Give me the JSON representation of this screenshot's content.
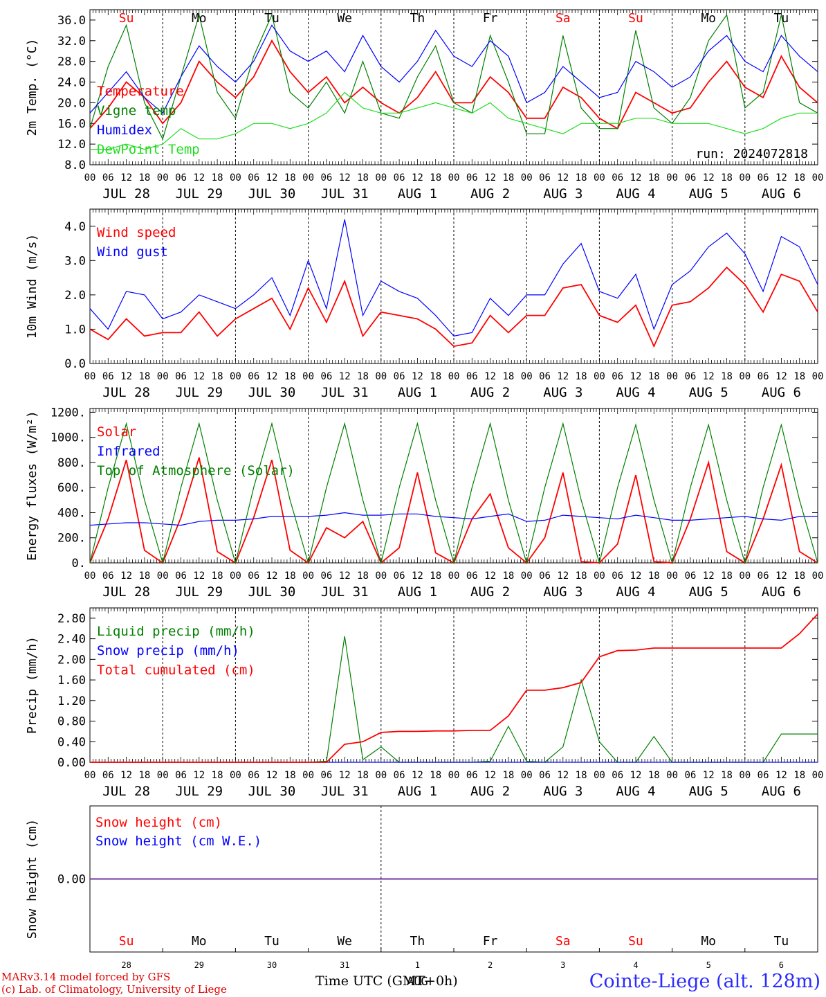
{
  "footer": {
    "model_line": "MARv3.14 model forced by GFS",
    "copyright_line": "(c) Lab. of Climatology, University of Liege",
    "time_label": "Time UTC (GMT+0h)",
    "station": "Cointe-Liege (alt. 128m)",
    "month_tag": "AUG"
  },
  "colors": {
    "red": "#ff0000",
    "darkgreen": "#008000",
    "blue": "#0000ff",
    "lightgreen": "#22dd22",
    "purple": "#7030a0"
  },
  "days": [
    {
      "abbr": "Su",
      "date": "JUL 28",
      "num": "28",
      "weekend": true
    },
    {
      "abbr": "Mo",
      "date": "JUL 29",
      "num": "29",
      "weekend": false
    },
    {
      "abbr": "Tu",
      "date": "JUL 30",
      "num": "30",
      "weekend": false
    },
    {
      "abbr": "We",
      "date": "JUL 31",
      "num": "31",
      "weekend": false
    },
    {
      "abbr": "Th",
      "date": "AUG  1",
      "num": "1",
      "weekend": false
    },
    {
      "abbr": "Fr",
      "date": "AUG  2",
      "num": "2",
      "weekend": false
    },
    {
      "abbr": "Sa",
      "date": "AUG  3",
      "num": "3",
      "weekend": true
    },
    {
      "abbr": "Su",
      "date": "AUG  4",
      "num": "4",
      "weekend": true
    },
    {
      "abbr": "Mo",
      "date": "AUG  5",
      "num": "5",
      "weekend": false
    },
    {
      "abbr": "Tu",
      "date": "AUG  6",
      "num": "6",
      "weekend": false
    }
  ],
  "hour_labels": [
    "00",
    "06",
    "12",
    "18"
  ],
  "chart_data": [
    {
      "type": "line",
      "ylabel": "2m Temp. (°C)",
      "ylim": [
        8,
        38
      ],
      "yticks": [
        8,
        12,
        16,
        20,
        24,
        28,
        32,
        36
      ],
      "ytick_labels": [
        "8.0",
        "12.0",
        "16.0",
        "20.0",
        "24.0",
        "28.0",
        "32.0",
        "36.0"
      ],
      "annotation": "run: 2024072818",
      "x_hours": [
        0,
        6,
        12,
        18,
        24,
        30,
        36,
        42,
        48,
        54,
        60,
        66,
        72,
        78,
        84,
        90,
        96,
        102,
        108,
        114,
        120,
        126,
        132,
        138,
        144,
        150,
        156,
        162,
        168,
        174,
        180,
        186,
        192,
        198,
        204,
        210,
        216,
        222,
        228,
        234,
        240
      ],
      "series": [
        {
          "name": "Temperature",
          "color": "red",
          "values": [
            15,
            19,
            24,
            21,
            16,
            20,
            28,
            24,
            21,
            25,
            32,
            26,
            22,
            25,
            20,
            23,
            20,
            18,
            21,
            26,
            20,
            20,
            25,
            22,
            17,
            17,
            23,
            21,
            17,
            15,
            22,
            20,
            18,
            19,
            24,
            28,
            23,
            21,
            29,
            23,
            20
          ]
        },
        {
          "name": "Vigne temp",
          "color": "darkgreen",
          "values": [
            15,
            27,
            35,
            20,
            13,
            25,
            37,
            22,
            17,
            29,
            37,
            22,
            19,
            24,
            18,
            28,
            18,
            17,
            25,
            31,
            20,
            18,
            33,
            24,
            14,
            14,
            33,
            19,
            15,
            15,
            34,
            19,
            16,
            21,
            32,
            37,
            19,
            22,
            37,
            20,
            18
          ]
        },
        {
          "name": "Humidex",
          "color": "blue",
          "values": [
            18,
            22,
            26,
            21,
            18,
            25,
            31,
            27,
            24,
            28,
            35,
            30,
            28,
            30,
            26,
            33,
            27,
            24,
            28,
            34,
            29,
            27,
            32,
            29,
            20,
            22,
            27,
            24,
            21,
            22,
            28,
            26,
            23,
            25,
            30,
            33,
            28,
            26,
            33,
            29,
            26
          ]
        },
        {
          "name": "DewPoint Temp",
          "color": "lightgreen",
          "values": [
            11,
            11,
            12,
            11,
            12,
            15,
            13,
            13,
            14,
            16,
            16,
            15,
            16,
            18,
            22,
            19,
            18,
            18,
            19,
            20,
            19,
            18,
            20,
            17,
            16,
            15,
            14,
            16,
            16,
            16,
            17,
            17,
            16,
            16,
            16,
            15,
            14,
            15,
            17,
            18,
            18
          ]
        }
      ]
    },
    {
      "type": "line",
      "ylabel": "10m Wind (m/s)",
      "ylim": [
        0,
        4.5
      ],
      "yticks": [
        0,
        1,
        2,
        3,
        4
      ],
      "ytick_labels": [
        "0.0",
        "1.0",
        "2.0",
        "3.0",
        "4.0"
      ],
      "x_hours": [
        0,
        6,
        12,
        18,
        24,
        30,
        36,
        42,
        48,
        54,
        60,
        66,
        72,
        78,
        84,
        90,
        96,
        102,
        108,
        114,
        120,
        126,
        132,
        138,
        144,
        150,
        156,
        162,
        168,
        174,
        180,
        186,
        192,
        198,
        204,
        210,
        216,
        222,
        228,
        234,
        240
      ],
      "series": [
        {
          "name": "Wind speed",
          "color": "red",
          "values": [
            1.0,
            0.7,
            1.3,
            0.8,
            0.9,
            0.9,
            1.5,
            0.8,
            1.3,
            1.6,
            1.9,
            1.0,
            2.2,
            1.2,
            2.4,
            0.8,
            1.5,
            1.4,
            1.3,
            1.0,
            0.5,
            0.6,
            1.4,
            0.9,
            1.4,
            1.4,
            2.2,
            2.3,
            1.4,
            1.2,
            1.7,
            0.5,
            1.7,
            1.8,
            2.2,
            2.8,
            2.3,
            1.5,
            2.6,
            2.4,
            1.5
          ]
        },
        {
          "name": "Wind gust",
          "color": "blue",
          "values": [
            1.6,
            1.0,
            2.1,
            2.0,
            1.3,
            1.5,
            2.0,
            1.8,
            1.6,
            2.0,
            2.5,
            1.4,
            3.0,
            1.6,
            4.2,
            1.4,
            2.4,
            2.1,
            1.9,
            1.4,
            0.8,
            0.9,
            1.9,
            1.4,
            2.0,
            2.0,
            2.9,
            3.5,
            2.1,
            1.9,
            2.6,
            1.0,
            2.3,
            2.7,
            3.4,
            3.8,
            3.2,
            2.1,
            3.7,
            3.4,
            2.3
          ]
        }
      ]
    },
    {
      "type": "line",
      "ylabel": "Energy fluxes (W/m²)",
      "ylim": [
        0,
        1230
      ],
      "yticks": [
        0,
        200,
        400,
        600,
        800,
        1000,
        1200
      ],
      "ytick_labels": [
        "0.",
        "200.",
        "400.",
        "600.",
        "800.",
        "1000.",
        "1200."
      ],
      "x_hours": [
        0,
        6,
        12,
        18,
        24,
        30,
        36,
        42,
        48,
        54,
        60,
        66,
        72,
        78,
        84,
        90,
        96,
        102,
        108,
        114,
        120,
        126,
        132,
        138,
        144,
        150,
        156,
        162,
        168,
        174,
        180,
        186,
        192,
        198,
        204,
        210,
        216,
        222,
        228,
        234,
        240
      ],
      "series": [
        {
          "name": "Solar",
          "color": "red",
          "values": [
            0,
            350,
            820,
            100,
            0,
            360,
            840,
            90,
            0,
            360,
            820,
            100,
            0,
            280,
            200,
            330,
            0,
            120,
            720,
            80,
            0,
            350,
            550,
            120,
            0,
            200,
            720,
            10,
            0,
            150,
            700,
            10,
            0,
            350,
            800,
            90,
            0,
            350,
            780,
            90,
            0
          ]
        },
        {
          "name": "Infrared",
          "color": "blue",
          "values": [
            300,
            310,
            320,
            320,
            310,
            300,
            330,
            340,
            340,
            350,
            370,
            370,
            370,
            380,
            400,
            380,
            380,
            390,
            390,
            370,
            360,
            350,
            370,
            390,
            330,
            340,
            380,
            370,
            360,
            350,
            380,
            360,
            340,
            340,
            350,
            360,
            370,
            350,
            340,
            370,
            370
          ]
        },
        {
          "name": "Top of Atmosphere (Solar)",
          "color": "darkgreen",
          "values": [
            0,
            600,
            1110,
            500,
            0,
            600,
            1110,
            500,
            0,
            600,
            1110,
            500,
            0,
            600,
            1110,
            500,
            0,
            600,
            1110,
            500,
            0,
            600,
            1110,
            500,
            0,
            600,
            1110,
            500,
            0,
            600,
            1100,
            500,
            0,
            600,
            1100,
            500,
            0,
            600,
            1100,
            500,
            0
          ]
        }
      ]
    },
    {
      "type": "line",
      "ylabel": "Precip (mm/h)",
      "ylim": [
        0,
        3.0
      ],
      "yticks": [
        0,
        0.4,
        0.8,
        1.2,
        1.6,
        2.0,
        2.4,
        2.8
      ],
      "ytick_labels": [
        "0.00",
        "0.40",
        "0.80",
        "1.20",
        "1.60",
        "2.00",
        "2.40",
        "2.80"
      ],
      "x_hours": [
        0,
        6,
        12,
        18,
        24,
        30,
        36,
        42,
        48,
        54,
        60,
        66,
        72,
        78,
        84,
        90,
        96,
        102,
        108,
        114,
        120,
        126,
        132,
        138,
        144,
        150,
        156,
        162,
        168,
        174,
        180,
        186,
        192,
        198,
        204,
        210,
        216,
        222,
        228,
        234,
        240
      ],
      "series": [
        {
          "name": "Liquid precip (mm/h)",
          "color": "darkgreen",
          "values": [
            0,
            0,
            0,
            0,
            0,
            0,
            0,
            0,
            0,
            0,
            0,
            0,
            0,
            0.02,
            2.45,
            0.05,
            0.3,
            0,
            0,
            0,
            0,
            0,
            0.02,
            0.7,
            0.02,
            0,
            0.3,
            1.6,
            0.4,
            0,
            0,
            0.5,
            0,
            0,
            0,
            0,
            0,
            0,
            0.55,
            0.55,
            0.55
          ]
        },
        {
          "name": "Snow precip (mm/h)",
          "color": "blue",
          "values": [
            0,
            0,
            0,
            0,
            0,
            0,
            0,
            0,
            0,
            0,
            0,
            0,
            0,
            0,
            0,
            0,
            0,
            0,
            0,
            0,
            0,
            0,
            0,
            0,
            0,
            0,
            0,
            0,
            0,
            0,
            0,
            0,
            0,
            0,
            0,
            0,
            0,
            0,
            0,
            0,
            0
          ]
        },
        {
          "name": "Total cumulated (cm)",
          "color": "red",
          "values": [
            0,
            0,
            0,
            0,
            0,
            0,
            0,
            0,
            0,
            0,
            0,
            0,
            0,
            0,
            0.35,
            0.4,
            0.58,
            0.6,
            0.6,
            0.61,
            0.61,
            0.62,
            0.62,
            0.9,
            1.4,
            1.4,
            1.45,
            1.55,
            2.05,
            2.17,
            2.18,
            2.22,
            2.22,
            2.22,
            2.22,
            2.22,
            2.22,
            2.22,
            2.22,
            2.5,
            2.88
          ]
        }
      ]
    },
    {
      "type": "line",
      "ylabel": "Snow height (cm)",
      "ylim": [
        -1,
        1
      ],
      "yticks": [
        0
      ],
      "ytick_labels": [
        "0.00"
      ],
      "series": [
        {
          "name": "Snow height (cm)",
          "color": "red",
          "values": [
            0,
            0
          ]
        },
        {
          "name": "Snow height (cm W.E.)",
          "color": "blue",
          "values": [
            0,
            0
          ]
        }
      ]
    }
  ]
}
